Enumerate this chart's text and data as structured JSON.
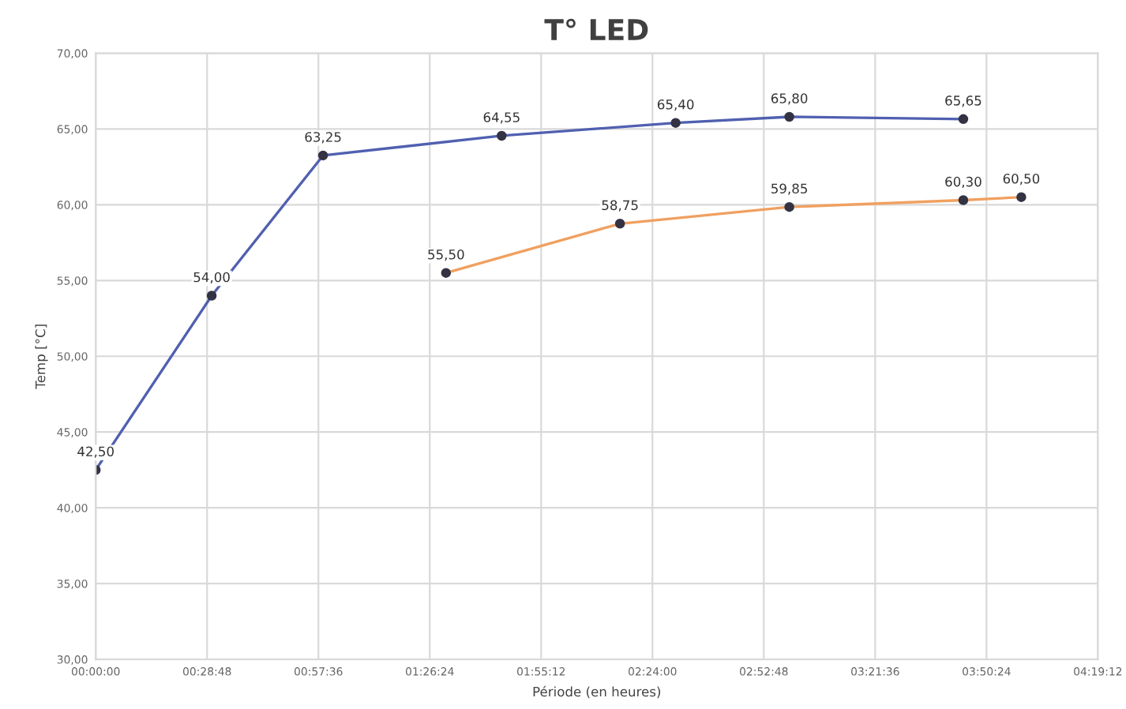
{
  "chart_data": {
    "type": "line",
    "title": "T° LED",
    "xlabel": "Période (en heures)",
    "ylabel": "Temp [°C]",
    "xlim": [
      0,
      4.32
    ],
    "ylim": [
      30,
      70
    ],
    "xticks": [
      {
        "value": 0,
        "label": "00:00:00"
      },
      {
        "value": 0.48,
        "label": "00:28:48"
      },
      {
        "value": 0.96,
        "label": "00:57:36"
      },
      {
        "value": 1.44,
        "label": "01:26:24"
      },
      {
        "value": 1.92,
        "label": "01:55:12"
      },
      {
        "value": 2.4,
        "label": "02:24:00"
      },
      {
        "value": 2.88,
        "label": "02:52:48"
      },
      {
        "value": 3.36,
        "label": "03:21:36"
      },
      {
        "value": 3.84,
        "label": "03:50:24"
      },
      {
        "value": 4.32,
        "label": "04:19:12"
      }
    ],
    "yticks": [
      {
        "value": 30,
        "label": "30,00"
      },
      {
        "value": 35,
        "label": "35,00"
      },
      {
        "value": 40,
        "label": "40,00"
      },
      {
        "value": 45,
        "label": "45,00"
      },
      {
        "value": 50,
        "label": "50,00"
      },
      {
        "value": 55,
        "label": "55,00"
      },
      {
        "value": 60,
        "label": "60,00"
      },
      {
        "value": 65,
        "label": "65,00"
      },
      {
        "value": 70,
        "label": "70,00"
      }
    ],
    "grid": true,
    "legend": false,
    "marker": "circle",
    "line_style": "solid",
    "series": [
      {
        "color": "#5060b0",
        "x": [
          0,
          0.5,
          0.98,
          1.75,
          2.5,
          2.99,
          3.74
        ],
        "values": [
          42.5,
          54.0,
          63.25,
          64.55,
          65.4,
          65.8,
          65.65
        ],
        "value_labels": [
          "42,50",
          "54,00",
          "63,25",
          "64,55",
          "65,40",
          "65,80",
          "65,65"
        ]
      },
      {
        "color": "#f0a060",
        "x": [
          1.51,
          2.26,
          2.99,
          3.74,
          3.99
        ],
        "values": [
          55.5,
          58.75,
          59.85,
          60.3,
          60.5
        ],
        "value_labels": [
          "55,50",
          "58,75",
          "59,85",
          "60,30",
          "60,50"
        ]
      }
    ]
  }
}
